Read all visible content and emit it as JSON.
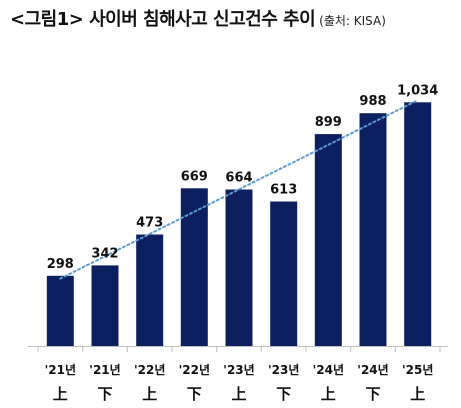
{
  "header": {
    "title": "<그림1> 사이버 침해사고 신고건수 추이",
    "source": "(출처: KISA)"
  },
  "chart_data": {
    "type": "bar",
    "title": "<그림1> 사이버 침해사고 신고건수 추이",
    "categories": [
      "'21년 上",
      "'21년 下",
      "'22년 上",
      "'22년 下",
      "'23년 上",
      "'23년 下",
      "'24년 上",
      "'24년 下",
      "'25년 上"
    ],
    "category_lines": [
      [
        "'21년",
        "上"
      ],
      [
        "'21년",
        "下"
      ],
      [
        "'22년",
        "上"
      ],
      [
        "'22년",
        "下"
      ],
      [
        "'23년",
        "上"
      ],
      [
        "'23년",
        "下"
      ],
      [
        "'24년",
        "上"
      ],
      [
        "'24년",
        "下"
      ],
      [
        "'25년",
        "上"
      ]
    ],
    "values": [
      298,
      342,
      473,
      669,
      664,
      613,
      899,
      988,
      1034
    ],
    "value_labels": [
      "298",
      "342",
      "473",
      "669",
      "664",
      "613",
      "899",
      "988",
      "1,034"
    ],
    "ylim": [
      0,
      1150
    ],
    "grid": false,
    "trendline": {
      "style": "dotted",
      "color": "#5b9bd5"
    },
    "colors": {
      "bar": "#0c1f5e",
      "trend": "#5b9bd5"
    }
  }
}
